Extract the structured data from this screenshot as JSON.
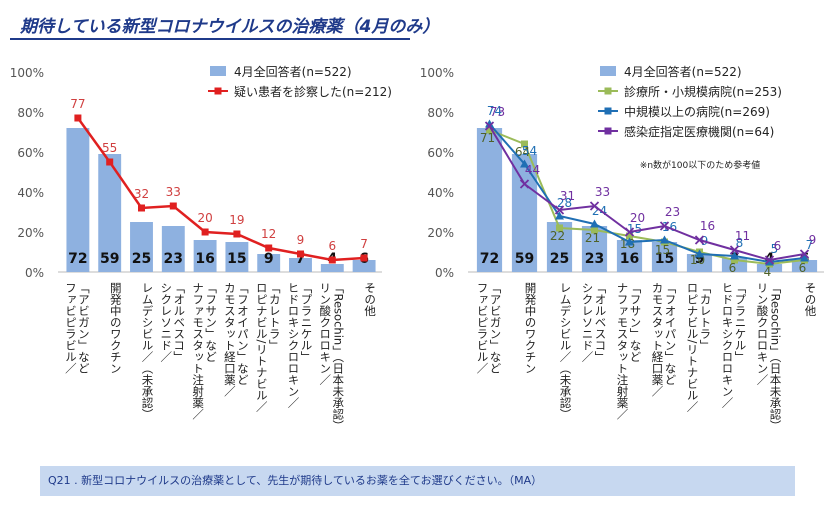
{
  "page": {
    "title": "期待している新型コロナウイルスの治療薬（4月のみ）",
    "footnote": "※n数が100以下のため参考値",
    "question": "Q21 . 新型コロナウイルスの治療薬として、先生が期待しているお薬を全てお選びください。（MA）"
  },
  "colors": {
    "bar": "#8eb1e0",
    "left_line": "#e02020",
    "clinic": "#9bbb59",
    "hospital": "#1f6fb4",
    "infect": "#7030a0",
    "title": "#1f3a8a"
  },
  "chart_data": [
    {
      "type": "bar",
      "categories": [
        "「アビガン」など ファビピラビル／",
        "開発中のワクチン",
        "レムデシビル／（未承認）",
        "「オルベスコ」 シクレソニド／",
        "「フサン」など ナファモスタット注射薬／",
        "「フオイパン」など カモスタット経口薬／",
        "「カレトラ」 ロピナビル/リトナビル／",
        "「プラニケル」 ヒドロキシクロロキン／",
        "「Resochin」（日本未承認） リン酸クロロキン／",
        "その他"
      ],
      "ylim": [
        0,
        100
      ],
      "yticks": [
        "0%",
        "20%",
        "40%",
        "60%",
        "80%",
        "100%"
      ],
      "series": [
        {
          "name": "4月全回答者(n=522)",
          "kind": "bar",
          "values": [
            72,
            59,
            25,
            23,
            16,
            15,
            9,
            7,
            4,
            6
          ]
        },
        {
          "name": "疑い患者を診察した(n=212)",
          "kind": "line",
          "values": [
            77,
            55,
            32,
            33,
            20,
            19,
            12,
            9,
            6,
            7
          ]
        }
      ]
    },
    {
      "type": "bar",
      "categories": [
        "「アビガン」など ファビピラビル／",
        "開発中のワクチン",
        "レムデシビル／（未承認）",
        "「オルベスコ」 シクレソニド／",
        "「フサン」など ナファモスタット注射薬／",
        "「フオイパン」など カモスタット経口薬／",
        "「カレトラ」 ロピナビル/リトナビル／",
        "「プラニケル」 ヒドロキシクロロキン／",
        "「Resochin」（日本未承認） リン酸クロロキン／",
        "その他"
      ],
      "ylim": [
        0,
        100
      ],
      "yticks": [
        "0%",
        "20%",
        "40%",
        "60%",
        "80%",
        "100%"
      ],
      "series": [
        {
          "name": "4月全回答者(n=522)",
          "kind": "bar",
          "values": [
            72,
            59,
            25,
            23,
            16,
            15,
            9,
            7,
            4,
            6
          ]
        },
        {
          "name": "診療所・小規模病院(n=253)",
          "kind": "line",
          "values": [
            71,
            64,
            22,
            21,
            18,
            15,
            10,
            6,
            4,
            6
          ]
        },
        {
          "name": "中規模以上の病院(n=269)",
          "kind": "line",
          "values": [
            74,
            54,
            28,
            24,
            15,
            16,
            9,
            8,
            5,
            7
          ]
        },
        {
          "name": "感染症指定医療機関(n=64)",
          "kind": "line",
          "values": [
            73,
            44,
            31,
            33,
            20,
            23,
            16,
            11,
            6,
            9
          ]
        }
      ]
    }
  ]
}
